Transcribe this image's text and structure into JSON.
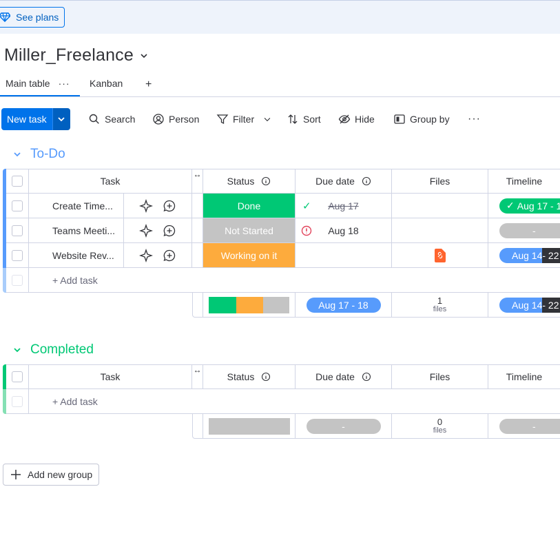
{
  "topbar": {
    "see_plans": "See plans"
  },
  "board": {
    "title": "Miller_Freelance"
  },
  "views": {
    "main_table": "Main table",
    "kanban": "Kanban",
    "add": "+"
  },
  "toolbar": {
    "new_task": "New task",
    "search": "Search",
    "person": "Person",
    "filter": "Filter",
    "sort": "Sort",
    "hide": "Hide",
    "group_by": "Group by"
  },
  "columns": {
    "task": "Task",
    "status": "Status",
    "due_date": "Due date",
    "files": "Files",
    "timeline": "Timeline"
  },
  "groups": [
    {
      "name": "To-Do",
      "color": "#579bfc",
      "items": [
        {
          "task": "Create Time...",
          "status": "Done",
          "status_color": "#00c875",
          "due": "Aug 17",
          "due_state": "done",
          "timeline": "Aug 17 - 1",
          "timeline_state": "done"
        },
        {
          "task": "Teams Meeti...",
          "status": "Not Started",
          "status_color": "#c4c4c4",
          "due": "Aug 18",
          "due_state": "overdue",
          "timeline": "-",
          "timeline_state": "empty"
        },
        {
          "task": "Website Rev...",
          "status": "Working on it",
          "status_color": "#fdab3d",
          "due": "",
          "due_state": "none",
          "has_file": true,
          "timeline_a": "Aug 14",
          "timeline_b": " - 22",
          "timeline_state": "split"
        }
      ],
      "add_task": "+ Add task",
      "summary": {
        "status_fractions": [
          0.34,
          0.33,
          0.33
        ],
        "status_colors": [
          "#00c875",
          "#fdab3d",
          "#c4c4c4"
        ],
        "due_range": "Aug 17 - 18",
        "files_count": "1",
        "files_label": "files",
        "timeline_a": "Aug 14",
        "timeline_b": " - 22"
      }
    },
    {
      "name": "Completed",
      "color": "#00c875",
      "add_task": "+ Add task",
      "summary": {
        "due_range": "-",
        "files_count": "0",
        "files_label": "files",
        "timeline": "-"
      }
    }
  ],
  "add_group": "Add new group"
}
